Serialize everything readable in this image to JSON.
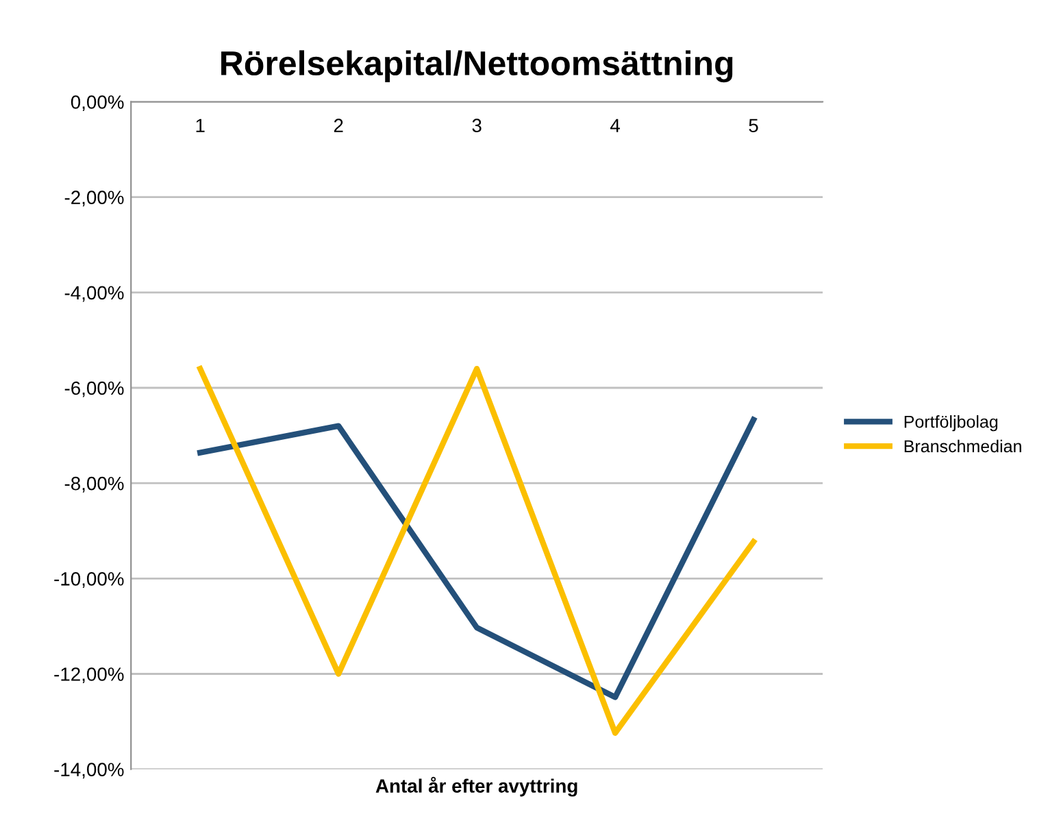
{
  "chart_data": {
    "type": "line",
    "title": "Rörelsekapital/Nettoomsättning",
    "xlabel": "Antal år efter avyttring",
    "categories": [
      "1",
      "2",
      "3",
      "4",
      "5"
    ],
    "series": [
      {
        "name": "Portföljbolag",
        "color": "#24507a",
        "values": [
          -7.36,
          -6.8,
          -11.03,
          -12.49,
          -6.67
        ]
      },
      {
        "name": "Branschmedian",
        "color": "#fbbf00",
        "values": [
          -5.6,
          -12.0,
          -5.6,
          -13.24,
          -9.23
        ]
      }
    ],
    "ylim": [
      -14,
      0
    ],
    "yticks": [
      {
        "value": 0,
        "label": "0,00%"
      },
      {
        "value": -2,
        "label": "-2,00%"
      },
      {
        "value": -4,
        "label": "-4,00%"
      },
      {
        "value": -6,
        "label": "-6,00%"
      },
      {
        "value": -8,
        "label": "-8,00%"
      },
      {
        "value": -10,
        "label": "-10,00%"
      },
      {
        "value": -12,
        "label": "-12,00%"
      },
      {
        "value": -14,
        "label": "-14,00%"
      }
    ],
    "grid": "y",
    "legend": "right",
    "marker": "none",
    "line_style": "solid"
  }
}
